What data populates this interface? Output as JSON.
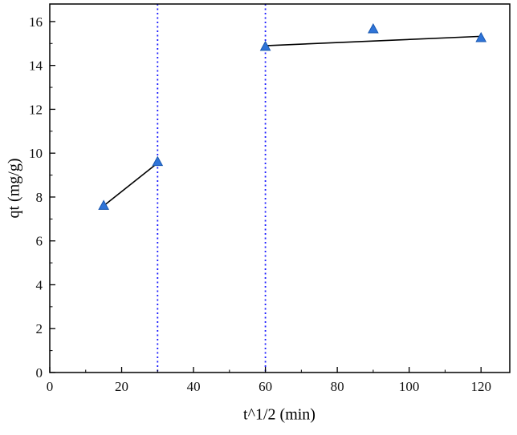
{
  "figure": {
    "background": "#ffffff",
    "axis_color": "#000000",
    "text_color": "#111111"
  },
  "chart_data": {
    "type": "scatter",
    "title": "",
    "xlabel": "t^1/2 (min)",
    "ylabel": "qt (mg/g)",
    "xlim": [
      0,
      128
    ],
    "ylim": [
      0,
      16.8
    ],
    "x_ticks": [
      0,
      20,
      40,
      60,
      80,
      100,
      120
    ],
    "y_ticks": [
      0,
      2,
      4,
      6,
      8,
      10,
      12,
      14,
      16
    ],
    "x_minor_step": 10,
    "y_minor_step": 1,
    "grid": false,
    "legend": false,
    "series": [
      {
        "name": "intraparticle-diffusion-data",
        "marker": "triangle",
        "color": "#2f74d8",
        "edge_color": "#1857b0",
        "points": [
          [
            15,
            7.6
          ],
          [
            30,
            9.6
          ],
          [
            60,
            14.85
          ],
          [
            90,
            15.65
          ],
          [
            120,
            15.25
          ]
        ]
      }
    ],
    "fit_lines": [
      {
        "name": "stage-1-fit",
        "color": "#000000",
        "from": [
          15,
          7.6
        ],
        "to": [
          30,
          9.55
        ]
      },
      {
        "name": "stage-2-fit",
        "color": "#000000",
        "from": [
          60,
          14.9
        ],
        "to": [
          120.5,
          15.33
        ]
      }
    ],
    "reference_lines": [
      {
        "name": "stage-boundary-1",
        "x": 30,
        "color": "#1a1aff",
        "style": "dotted"
      },
      {
        "name": "stage-boundary-2",
        "x": 60,
        "color": "#1a1aff",
        "style": "dotted"
      }
    ]
  }
}
